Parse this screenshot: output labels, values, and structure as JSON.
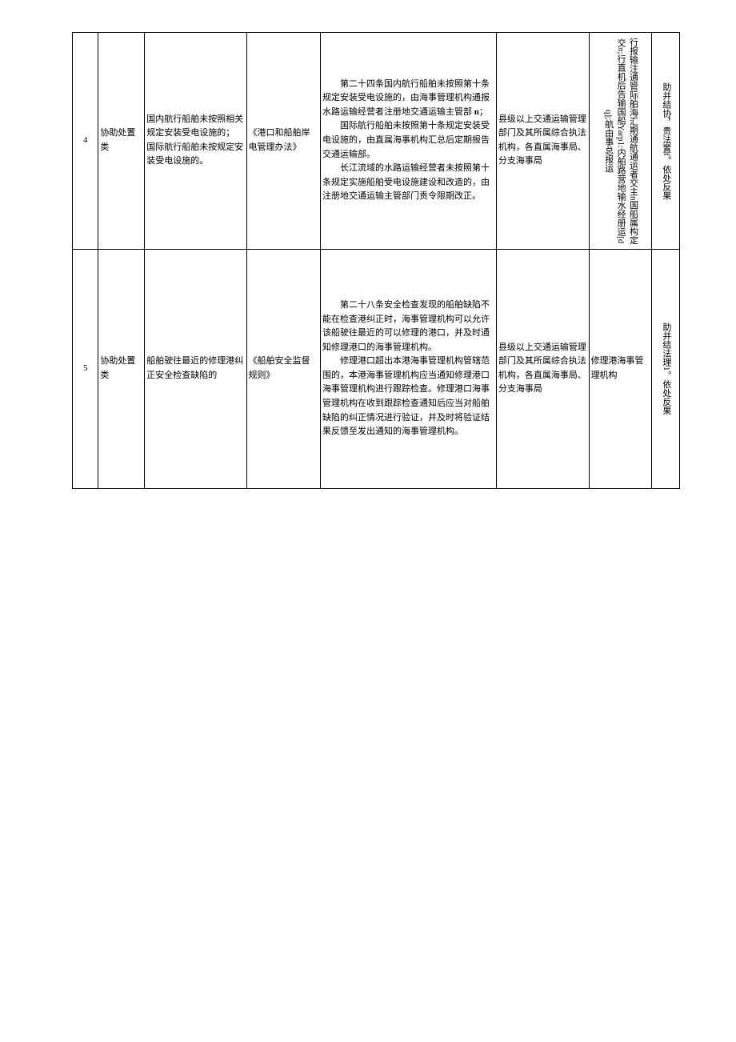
{
  "table": {
    "rows": [
      {
        "num": "4",
        "type": "协助处置类",
        "matter": "国内航行船舶未按照相关规定安装受电设施的；\n国际航行船舶未按规定安装受电设施的。",
        "basis": "《港口和船舶岸电管理办法》",
        "content": "第二十四条国内航行船舶未按照第十条规定安装受电设施的，由海事管理机构通报水路运输经营者注册地交通运输主管部n；\n国际航行船舶未按照第十条规定安装受电设施的，由直属海事机构汇总后定期报告交通运输部。\n长江流域的水路运输经营者未按照第十条规定实施船舶受电设施建设和改造的，由注册地交通运输主管部门责令限期改正。",
        "dept": "县级以上交通运输管理部门及其所属综合执法机构，各直属海事局、分支海事局",
        "flow_vertical": "行报输注通管际舶海汇期通航通运者交主n国船属构定交π;行直机后告输国船Yarp1:内舶路营地输水经册运[dq];航由事总报运",
        "result_vertical": "助并结协，贵法置f。依处反果"
      },
      {
        "num": "5",
        "type": "协助处置类",
        "matter": "船舶驶往最近的修理港纠正安全检查缺陷的",
        "basis": "《船舶安全监督规则》",
        "content": "第二十八条安全检查发现的船舶缺陷不能在检查港纠正时，海事管理机构可以允许该船驶往最近的可以修理的港口，并及时通知修理港口的海事管理机构。\n修理港口超出本港海事管理机构管辖范围的，本港海事管理机构应当通知修理港口海事管理机构进行跟踪检查。修理港口海事管理机构在收到跟踪检查通知后应当对船舶缺陷的纠正情况进行验证，并及时将验证结果反馈至发出通知的海事管理机构。",
        "dept": "县级以上交通运输管理部门及其所属综合执法机构，各直属海事局、分支海事局",
        "flow": "修理港海事管理机构",
        "result_vertical": "助并结法理1。依处反果"
      }
    ]
  },
  "style": {
    "background": "#ffffff",
    "border_color": "#000000",
    "font_size_pt": 11,
    "line_height": 1.6
  }
}
